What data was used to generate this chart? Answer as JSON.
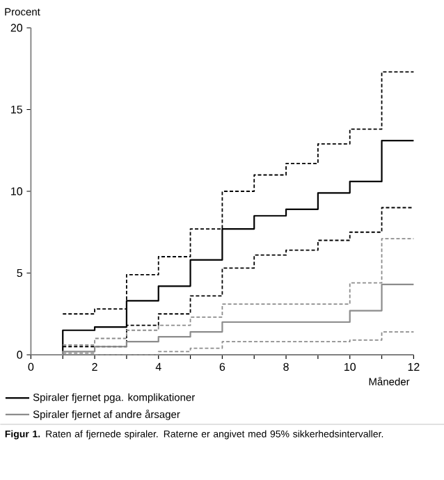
{
  "chart_data": {
    "type": "step",
    "xlabel": "Måneder",
    "ylabel": "Procent",
    "x": [
      0,
      1,
      2,
      3,
      4,
      5,
      6,
      7,
      8,
      9,
      10,
      11,
      12
    ],
    "series": [
      {
        "name": "Spiraler fjernet pga. komplikationer",
        "color": "#000000",
        "line_style": "solid",
        "values": [
          0,
          1.5,
          1.7,
          3.3,
          4.2,
          5.8,
          7.7,
          8.5,
          8.9,
          9.9,
          10.6,
          13.1,
          13.1
        ]
      },
      {
        "color": "#000000",
        "line_style": "dashed",
        "values": [
          null,
          2.5,
          2.8,
          4.9,
          6.0,
          7.7,
          10.0,
          11.0,
          11.7,
          12.9,
          13.8,
          17.3,
          17.3
        ]
      },
      {
        "color": "#000000",
        "line_style": "dashed",
        "values": [
          null,
          0.5,
          0.5,
          1.8,
          2.5,
          3.6,
          5.3,
          6.1,
          6.4,
          7.0,
          7.5,
          9.0,
          9.0
        ]
      },
      {
        "name": "Spiraler fjernet af andre årsager",
        "color": "#8c8c8c",
        "line_style": "solid",
        "values": [
          0,
          0.2,
          0.5,
          0.8,
          1.1,
          1.4,
          2.0,
          2.0,
          2.0,
          2.0,
          2.7,
          4.3,
          4.3
        ]
      },
      {
        "color": "#8c8c8c",
        "line_style": "dashed",
        "values": [
          null,
          0.6,
          1.0,
          1.5,
          1.8,
          2.3,
          3.1,
          3.1,
          3.1,
          3.1,
          4.4,
          7.1,
          7.1
        ]
      },
      {
        "color": "#8c8c8c",
        "line_style": "dashed",
        "values": [
          null,
          0.1,
          0.0,
          0.0,
          0.2,
          0.4,
          0.8,
          0.8,
          0.8,
          0.8,
          0.9,
          1.4,
          1.4
        ]
      }
    ],
    "xlim": [
      0,
      12
    ],
    "ylim": [
      0,
      20
    ],
    "xticks": [
      0,
      {
        "value": 1,
        "label": null
      },
      2,
      {
        "value": 3,
        "label": null
      },
      4,
      {
        "value": 5,
        "label": null
      },
      6,
      {
        "value": 7,
        "label": null
      },
      8,
      {
        "value": 9,
        "label": null
      },
      10,
      {
        "value": 11,
        "label": null
      },
      12
    ],
    "yticks": [
      0,
      5,
      10,
      15,
      20
    ],
    "grid": false,
    "legend": "bottom left",
    "marker": "none",
    "annotations": [
      "**Figur 1.** Raten af fjernede spiraler. Raterne er angivet med 95% sikkerhedsintervaller."
    ]
  }
}
